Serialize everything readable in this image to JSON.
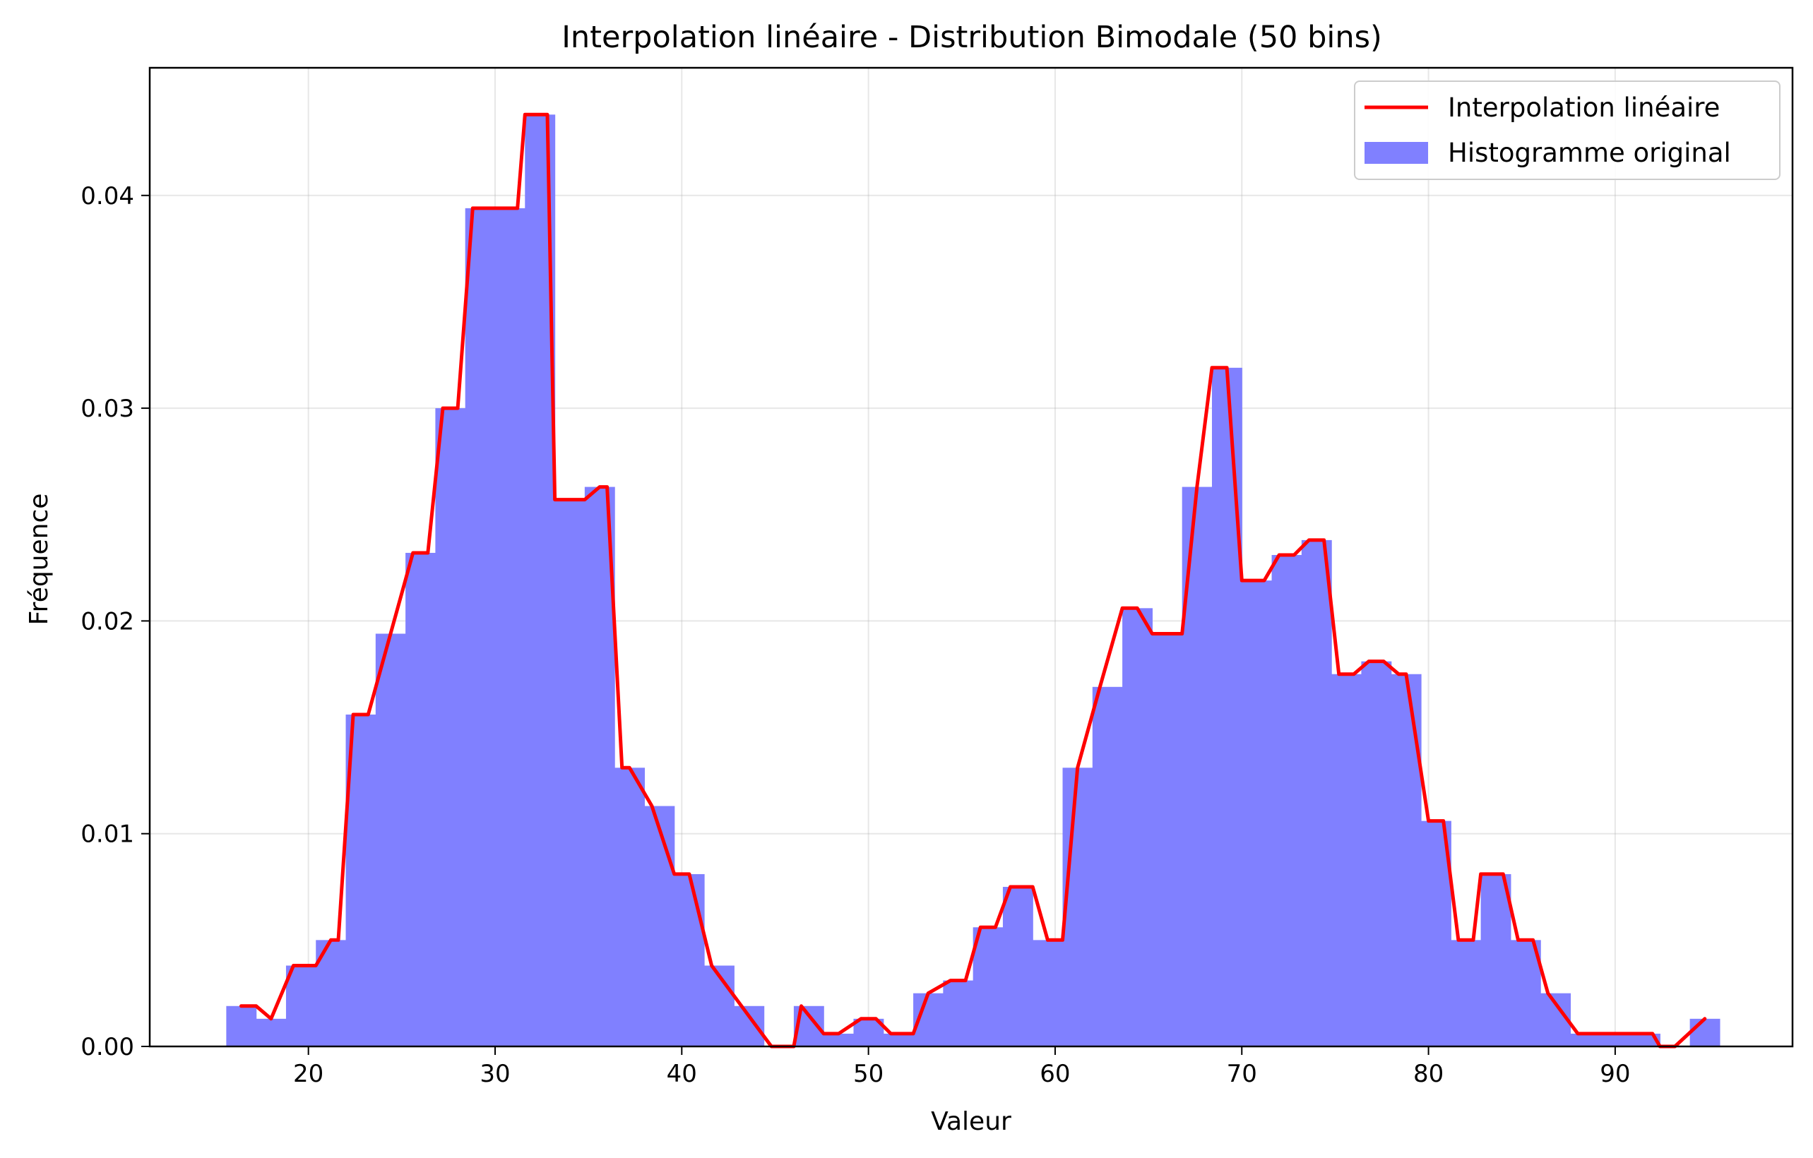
{
  "chart_data": {
    "type": "bar",
    "title": "Interpolation linéaire - Distribution Bimodale (50 bins)",
    "xlabel": "Valeur",
    "ylabel": "Fréquence",
    "xlim": [
      11.5,
      99.5
    ],
    "ylim": [
      0,
      0.046
    ],
    "xticks": [
      20,
      30,
      40,
      50,
      60,
      70,
      80,
      90
    ],
    "yticks": [
      0.0,
      0.01,
      0.02,
      0.03,
      0.04
    ],
    "xtick_labels": [
      "20",
      "30",
      "40",
      "50",
      "60",
      "70",
      "80",
      "90"
    ],
    "ytick_labels": [
      "0.00",
      "0.01",
      "0.02",
      "0.03",
      "0.04"
    ],
    "grid": true,
    "legend_position": "top-right",
    "histogram": {
      "name": "Histogramme original",
      "color": "#8080ff",
      "bin_start": 15.6,
      "bin_width": 1.6,
      "values": [
        0.0019,
        0.0013,
        0.0038,
        0.005,
        0.0156,
        0.0194,
        0.0232,
        0.03,
        0.0394,
        0.0394,
        0.0438,
        0.0257,
        0.0263,
        0.0131,
        0.0113,
        0.0081,
        0.0038,
        0.0019,
        0.0,
        0.0019,
        0.0006,
        0.0013,
        0.0006,
        0.0025,
        0.0031,
        0.0056,
        0.0075,
        0.005,
        0.0131,
        0.0169,
        0.0206,
        0.0194,
        0.0263,
        0.0319,
        0.0219,
        0.0231,
        0.0238,
        0.0175,
        0.0181,
        0.0175,
        0.0106,
        0.005,
        0.0081,
        0.005,
        0.0025,
        0.0006,
        0.0006,
        0.0006,
        0.0,
        0.0013
      ]
    },
    "line": {
      "name": "Interpolation linéaire",
      "color": "#ff0000",
      "x": [
        16.4,
        17.2,
        18.0,
        19.2,
        20.4,
        21.2,
        21.6,
        22.4,
        22.8,
        23.2,
        24.4,
        25.6,
        26.4,
        27.2,
        28.0,
        28.8,
        29.6,
        30.4,
        31.2,
        31.6,
        32.0,
        32.4,
        32.8,
        33.2,
        33.6,
        34.0,
        34.8,
        35.6,
        36.0,
        36.8,
        37.2,
        38.4,
        39.6,
        40.4,
        41.6,
        43.2,
        44.8,
        45.2,
        46.0,
        46.4,
        47.6,
        48.4,
        49.6,
        50.4,
        51.2,
        51.6,
        52.4,
        53.2,
        54.4,
        55.2,
        56.0,
        56.8,
        57.6,
        58.0,
        58.4,
        58.8,
        59.6,
        60.0,
        60.4,
        61.2,
        62.4,
        63.6,
        64.4,
        65.2,
        65.6,
        66.0,
        66.8,
        67.6,
        68.4,
        68.8,
        69.2,
        70.0,
        70.8,
        71.2,
        72.0,
        72.8,
        73.6,
        74.0,
        74.4,
        75.2,
        75.6,
        76.0,
        76.8,
        77.6,
        78.4,
        78.8,
        80.0,
        80.8,
        81.6,
        82.0,
        82.4,
        82.8,
        83.6,
        84.0,
        84.8,
        85.6,
        86.4,
        88.0,
        88.4,
        89.6,
        91.2,
        92.0,
        92.4,
        93.2,
        94.8
      ]
    }
  }
}
